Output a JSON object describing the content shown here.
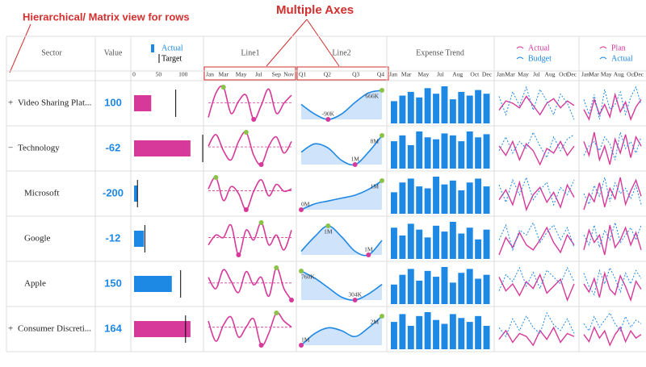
{
  "annotations": {
    "rows": "Hierarchical/ Matrix view for rows",
    "axes": "Multiple Axes"
  },
  "header": {
    "sector": "Sector",
    "value": "Value",
    "line1": "Line1",
    "line2": "Line2",
    "expense": "Expense Trend",
    "bullet_legend": {
      "actual": "Actual",
      "target": "Target"
    },
    "ab_legend": {
      "actual": "Actual",
      "budget": "Budget"
    },
    "pa_legend": {
      "plan": "Plan",
      "actual": "Actual"
    }
  },
  "axes": {
    "bullet": {
      "xlim": [
        0,
        135
      ],
      "xticks": [
        0,
        50,
        100
      ]
    },
    "line1": [
      "Jan",
      "Mar",
      "May",
      "Jul",
      "Sep",
      "Nov"
    ],
    "line2": [
      "Q1",
      "Q2",
      "Q3",
      "Q4"
    ],
    "expense": [
      "Jan",
      "Mar",
      "May",
      "Jul",
      "Aug",
      "Oct",
      "Dec"
    ],
    "ab": [
      "Jan",
      "Mar",
      "May",
      "Jul",
      "Aug",
      "Oct",
      "Dec"
    ],
    "pa": [
      "Jan",
      "Mar",
      "May",
      "Aug",
      "Oct",
      "Dec"
    ]
  },
  "colors": {
    "pink": "#d6399a",
    "blue": "#1e88e5",
    "area": "#cfe3fa"
  },
  "rows": [
    {
      "toggle": "+",
      "sector": "Video Sharing Plat...",
      "level": 0,
      "value": 100,
      "actual": 35,
      "target": 85,
      "bar_color": "#d6399a",
      "line1": [
        20,
        80,
        95,
        30,
        60,
        75,
        15,
        50,
        90,
        30,
        55,
        75
      ],
      "line2": {
        "values": [
          300000,
          50000,
          -90000,
          50000,
          350000,
          600000,
          666000
        ],
        "min": "-90K",
        "max": "666K"
      },
      "expense": [
        60,
        75,
        85,
        70,
        95,
        80,
        100,
        65,
        85,
        75,
        90,
        80
      ],
      "ab_actual": [
        40,
        60,
        55,
        45,
        70,
        50,
        30,
        55,
        65,
        45,
        60,
        50
      ],
      "ab_budget": [
        70,
        30,
        80,
        50,
        90,
        40,
        85,
        60,
        30,
        75,
        55,
        20
      ],
      "pa_plan": [
        50,
        30,
        70,
        40,
        60,
        35,
        80,
        45,
        65,
        30,
        55,
        70
      ],
      "pa_actual": [
        70,
        40,
        80,
        30,
        90,
        50,
        60,
        85,
        40,
        75,
        95,
        60
      ]
    },
    {
      "toggle": "−",
      "sector": "Technology",
      "level": 0,
      "value": -62,
      "actual": 115,
      "target": 140,
      "bar_color": "#d6399a",
      "line1": [
        60,
        85,
        50,
        30,
        70,
        90,
        40,
        20,
        60,
        80,
        45,
        70
      ],
      "line2": {
        "values": [
          4000000,
          6000000,
          5000000,
          2000000,
          1000000,
          4000000,
          8000000
        ],
        "min": "1M",
        "max": "8M"
      },
      "expense": [
        70,
        85,
        60,
        95,
        80,
        75,
        90,
        85,
        70,
        95,
        80,
        88
      ],
      "ab_actual": [
        60,
        40,
        70,
        30,
        65,
        50,
        20,
        55,
        45,
        70,
        40,
        60
      ],
      "ab_budget": [
        50,
        80,
        45,
        70,
        55,
        90,
        60,
        35,
        80,
        50,
        75,
        85
      ],
      "pa_plan": [
        70,
        40,
        90,
        30,
        60,
        20,
        75,
        45,
        85,
        35,
        80,
        60
      ],
      "pa_actual": [
        40,
        60,
        70,
        50,
        80,
        65,
        30,
        90,
        55,
        70,
        45,
        80
      ]
    },
    {
      "toggle": null,
      "sector": "Microsoft",
      "level": 1,
      "value": -200,
      "actual": 7,
      "target": 7,
      "bar_color": "#1e88e5",
      "line1": [
        55,
        80,
        30,
        60,
        45,
        10,
        50,
        75,
        40,
        65,
        50,
        55
      ],
      "line2": {
        "values": [
          0,
          200000,
          300000,
          400000,
          500000,
          700000,
          1000000
        ],
        "min": "0M",
        "max": "1M"
      },
      "expense": [
        55,
        80,
        90,
        70,
        65,
        95,
        75,
        85,
        60,
        80,
        90,
        70
      ],
      "ab_actual": [
        50,
        70,
        40,
        85,
        30,
        60,
        75,
        45,
        65,
        35,
        80,
        55
      ],
      "ab_budget": [
        80,
        45,
        90,
        60,
        95,
        50,
        70,
        85,
        40,
        75,
        60,
        90
      ],
      "pa_plan": [
        30,
        60,
        45,
        80,
        35,
        70,
        50,
        90,
        40,
        65,
        85,
        55
      ],
      "pa_actual": [
        60,
        40,
        75,
        55,
        90,
        45,
        80,
        60,
        70,
        50,
        75,
        40
      ]
    },
    {
      "toggle": null,
      "sector": "Google",
      "level": 1,
      "value": -12,
      "actual": 20,
      "target": 22,
      "bar_color": "#1e88e5",
      "line1": [
        40,
        60,
        55,
        80,
        20,
        70,
        50,
        85,
        40,
        60,
        30,
        70
      ],
      "line2": {
        "values": [
          700000,
          1100000,
          1400000,
          1100000,
          700000,
          600000,
          1000000
        ],
        "min": "1M",
        "max": "1M"
      },
      "expense": [
        80,
        60,
        90,
        75,
        55,
        85,
        70,
        95,
        65,
        80,
        50,
        75
      ],
      "ab_actual": [
        30,
        65,
        45,
        75,
        50,
        40,
        60,
        85,
        55,
        35,
        70,
        50
      ],
      "ab_budget": [
        60,
        90,
        40,
        80,
        70,
        95,
        55,
        75,
        90,
        60,
        85,
        45
      ],
      "pa_plan": [
        40,
        80,
        55,
        70,
        30,
        90,
        45,
        60,
        85,
        50,
        75,
        40
      ],
      "pa_actual": [
        70,
        50,
        90,
        45,
        80,
        60,
        95,
        55,
        70,
        85,
        60,
        90
      ]
    },
    {
      "toggle": null,
      "sector": "Apple",
      "level": 1,
      "value": 150,
      "actual": 77,
      "target": 95,
      "bar_color": "#1e88e5",
      "line1": [
        70,
        40,
        90,
        60,
        30,
        85,
        50,
        70,
        20,
        95,
        40,
        10
      ],
      "line2": {
        "values": [
          760000,
          650000,
          500000,
          350000,
          304000,
          400000,
          550000
        ],
        "min": "304K",
        "max": "760K"
      },
      "expense": [
        50,
        75,
        90,
        60,
        85,
        70,
        95,
        55,
        80,
        90,
        65,
        75
      ],
      "ab_actual": [
        70,
        40,
        55,
        30,
        60,
        45,
        75,
        35,
        50,
        65,
        20,
        55
      ],
      "ab_budget": [
        40,
        75,
        60,
        90,
        50,
        80,
        45,
        85,
        70,
        55,
        90,
        60
      ],
      "pa_plan": [
        60,
        45,
        70,
        35,
        80,
        50,
        40,
        75,
        55,
        30,
        65,
        50
      ],
      "pa_actual": [
        80,
        55,
        40,
        85,
        60,
        90,
        70,
        45,
        80,
        60,
        85,
        70
      ]
    },
    {
      "toggle": "+",
      "sector": "Consumer Discreti...",
      "level": 0,
      "value": 164,
      "actual": 115,
      "target": 105,
      "bar_color": "#d6399a",
      "line1": [
        70,
        20,
        60,
        80,
        30,
        55,
        75,
        10,
        40,
        90,
        70,
        55
      ],
      "line2": {
        "values": [
          1000000,
          1400000,
          1600000,
          1500000,
          1300000,
          1600000,
          2000000
        ],
        "min": "1M",
        "max": "2M"
      },
      "expense": [
        70,
        90,
        60,
        85,
        95,
        75,
        65,
        90,
        80,
        70,
        85,
        60
      ],
      "ab_actual": [
        40,
        55,
        35,
        50,
        45,
        30,
        55,
        40,
        60,
        35,
        50,
        45
      ],
      "ab_budget": [
        60,
        45,
        75,
        55,
        80,
        60,
        50,
        85,
        65,
        55,
        75,
        50
      ],
      "pa_plan": [
        45,
        35,
        55,
        40,
        50,
        30,
        45,
        55,
        35,
        50,
        40,
        45
      ],
      "pa_actual": [
        60,
        50,
        70,
        55,
        65,
        75,
        60,
        50,
        70,
        55,
        65,
        60
      ]
    }
  ]
}
